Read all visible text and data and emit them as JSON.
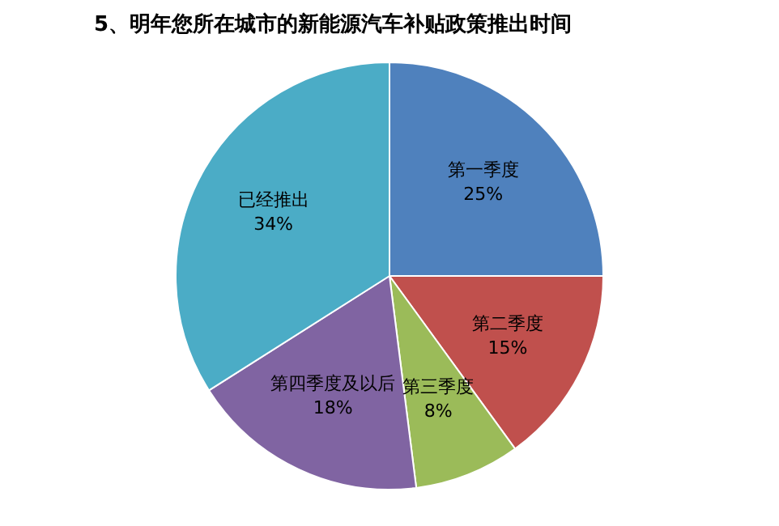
{
  "chart_data": {
    "type": "pie",
    "title": "5、明年您所在城市的新能源汽车补贴政策推出时间",
    "categories": [
      "第一季度",
      "第二季度",
      "第三季度",
      "第四季度及以后",
      "已经推出"
    ],
    "values": [
      25,
      15,
      8,
      18,
      34
    ],
    "value_labels": [
      "25%",
      "15%",
      "8%",
      "18%",
      "34%"
    ],
    "colors": [
      "#4f81bd",
      "#c0504d",
      "#9bbb59",
      "#8064a2",
      "#4bacc6"
    ],
    "legend": false
  }
}
